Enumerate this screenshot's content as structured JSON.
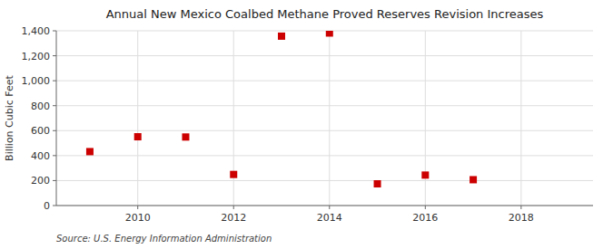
{
  "chart_data": {
    "type": "scatter",
    "title": "Annual New Mexico Coalbed Methane Proved Reserves Revision Increases",
    "y_label": "Billion Cubic Feet",
    "annotations": [
      "Source: U.S. Energy Information Administration"
    ],
    "x": [
      2009,
      2010,
      2011,
      2012,
      2013,
      2014,
      2015,
      2016,
      2017
    ],
    "values": [
      432,
      551,
      549,
      249,
      1357,
      1382,
      174,
      244,
      207
    ],
    "color": "#cc0000",
    "marker": "square",
    "xlim": [
      2008.3,
      2019.5
    ],
    "ylim": [
      0,
      1400
    ],
    "xticks": [
      2010,
      2012,
      2014,
      2016,
      2018
    ],
    "yticks": [
      0,
      200,
      400,
      600,
      800,
      {
        "value": 1000,
        "label": "1,000"
      },
      {
        "value": 1200,
        "label": "1,200"
      },
      {
        "value": 1400,
        "label": "1,400"
      }
    ],
    "grid": true
  }
}
